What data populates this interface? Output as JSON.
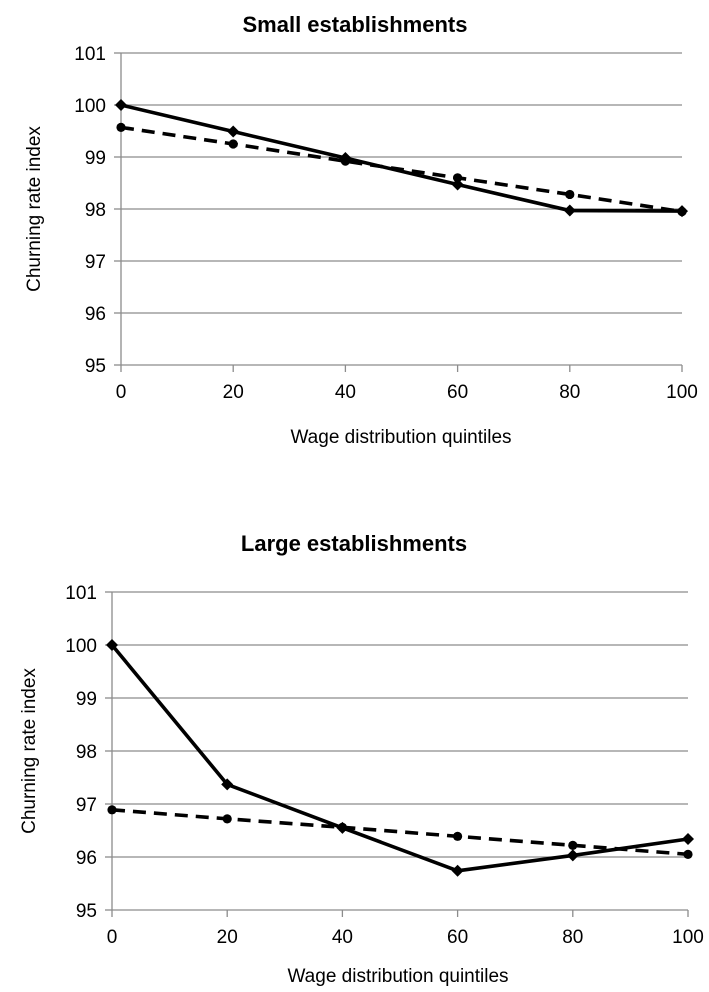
{
  "chart_data": [
    {
      "type": "line",
      "title": "Small establishments",
      "xlabel": "Wage distribution quintiles",
      "ylabel": "Churning rate index",
      "x": [
        0,
        20,
        40,
        60,
        80,
        100
      ],
      "xticks": [
        "0",
        "20",
        "40",
        "60",
        "80",
        "100"
      ],
      "yticks": [
        "95",
        "96",
        "97",
        "98",
        "99",
        "100",
        "101"
      ],
      "xlim": [
        0,
        100
      ],
      "ylim": [
        95,
        101
      ],
      "grid": "horizontal",
      "series": [
        {
          "style": "solid",
          "marker": "diamond",
          "color": "#000000",
          "values": [
            100,
            99.49,
            98.98,
            98.47,
            97.97,
            97.96
          ]
        },
        {
          "style": "dashed",
          "marker": "circle",
          "color": "#000000",
          "values": [
            99.57,
            99.25,
            98.92,
            98.6,
            98.28,
            97.95
          ]
        }
      ]
    },
    {
      "type": "line",
      "title": "Large establishments",
      "xlabel": "Wage distribution quintiles",
      "ylabel": "Churning rate index",
      "x": [
        0,
        20,
        40,
        60,
        80,
        100
      ],
      "xticks": [
        "0",
        "20",
        "40",
        "60",
        "80",
        "100"
      ],
      "yticks": [
        "95",
        "96",
        "97",
        "98",
        "99",
        "100",
        "101"
      ],
      "xlim": [
        0,
        100
      ],
      "ylim": [
        95,
        101
      ],
      "grid": "horizontal",
      "series": [
        {
          "style": "solid",
          "marker": "diamond",
          "color": "#000000",
          "values": [
            100,
            97.37,
            96.55,
            95.74,
            96.03,
            96.34
          ]
        },
        {
          "style": "dashed",
          "marker": "circle",
          "color": "#000000",
          "values": [
            96.89,
            96.72,
            96.56,
            96.39,
            96.22,
            96.05
          ]
        }
      ]
    }
  ]
}
